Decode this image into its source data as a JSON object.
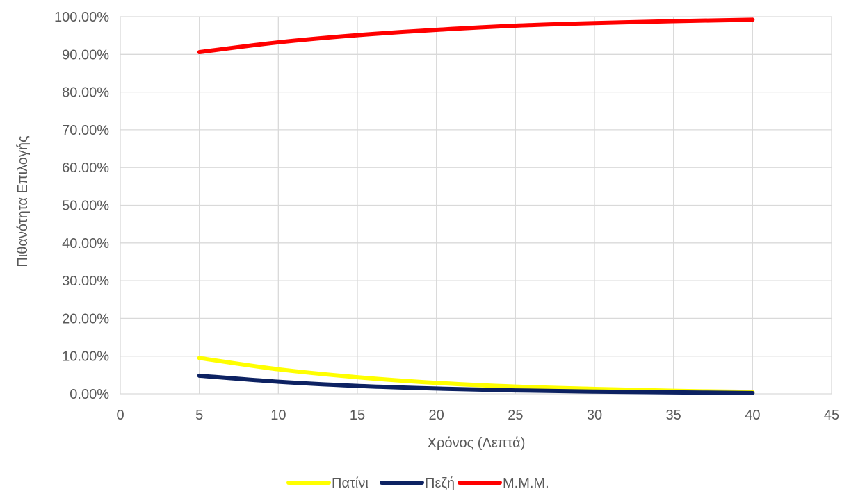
{
  "chart_data": {
    "type": "line",
    "title": "",
    "xlabel": "Χρόνος (Λεπτά)",
    "ylabel": "Πιθανότητα Επιλογής",
    "xlim": [
      0,
      45
    ],
    "ylim": [
      0,
      1
    ],
    "x_ticks": [
      "0",
      "5",
      "10",
      "15",
      "20",
      "25",
      "30",
      "35",
      "40",
      "45"
    ],
    "y_ticks": [
      "0.00%",
      "10.00%",
      "20.00%",
      "30.00%",
      "40.00%",
      "50.00%",
      "60.00%",
      "70.00%",
      "80.00%",
      "90.00%",
      "100.00%"
    ],
    "grid": true,
    "legend_position": "bottom",
    "x": [
      5,
      10,
      15,
      20,
      25,
      30,
      35,
      40
    ],
    "series": [
      {
        "name": "Πατίνι",
        "color": "#ffff00",
        "values": [
          0.095,
          0.065,
          0.044,
          0.029,
          0.019,
          0.013,
          0.008,
          0.005
        ]
      },
      {
        "name": "Πεζή",
        "color": "#0d2262",
        "values": [
          0.048,
          0.032,
          0.021,
          0.014,
          0.009,
          0.006,
          0.004,
          0.002
        ]
      },
      {
        "name": "Μ.Μ.Μ.",
        "color": "#ff0000",
        "values": [
          0.906,
          0.932,
          0.951,
          0.965,
          0.976,
          0.983,
          0.988,
          0.992
        ]
      }
    ]
  }
}
